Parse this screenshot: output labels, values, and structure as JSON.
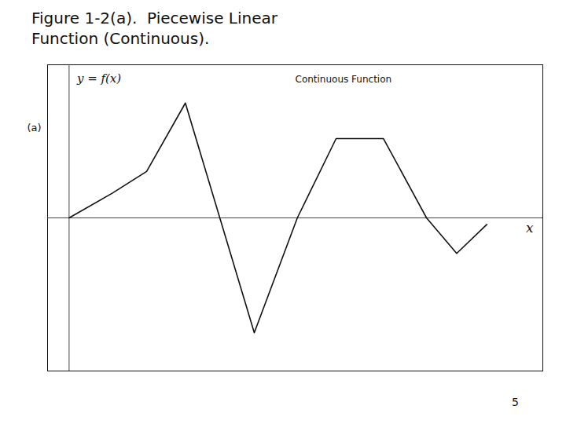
{
  "chart_data": {
    "type": "line",
    "title": "Figure 1-2(a).  Piecewise Linear",
    "subtitle": "Function (Continuous).",
    "xlabel": "x",
    "ylabel": "y = f(x)",
    "x": [
      0.0,
      1.0,
      1.8,
      2.7,
      4.3,
      5.3,
      6.2,
      7.3,
      8.3,
      9.0,
      9.7
    ],
    "values": [
      0.0,
      0.45,
      0.85,
      2.1,
      -2.1,
      0.0,
      1.45,
      1.45,
      0.0,
      -0.65,
      -0.12
    ],
    "color": "#111111",
    "xlim": [
      -0.5,
      11.0
    ],
    "ylim": [
      -2.8,
      2.8
    ],
    "tick_labels": false,
    "grid": false,
    "annotations": [
      "Continuous Function",
      "(a)",
      "5"
    ]
  }
}
